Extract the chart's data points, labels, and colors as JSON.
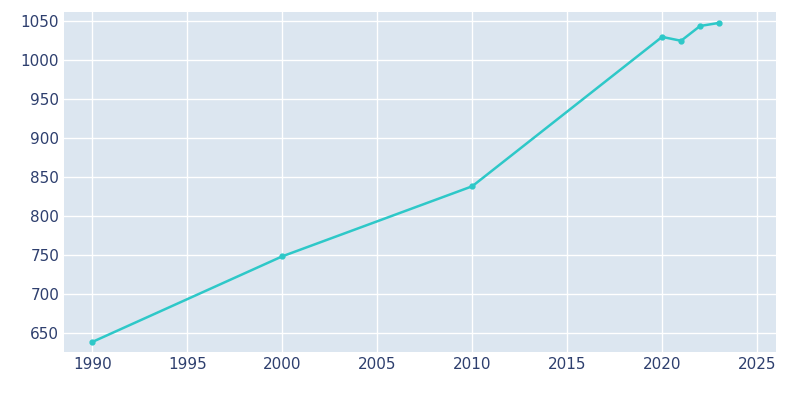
{
  "years": [
    1990,
    2000,
    2010,
    2020,
    2021,
    2022,
    2023
  ],
  "population": [
    638,
    748,
    838,
    1030,
    1025,
    1044,
    1048
  ],
  "line_color": "#2ec8c8",
  "background_color": "#ffffff",
  "axes_background_color": "#dce6f0",
  "grid_color": "#ffffff",
  "tick_label_color": "#2e3f6e",
  "ylim": [
    625,
    1062
  ],
  "xlim": [
    1988.5,
    2026
  ],
  "yticks": [
    650,
    700,
    750,
    800,
    850,
    900,
    950,
    1000,
    1050
  ],
  "xticks": [
    1990,
    1995,
    2000,
    2005,
    2010,
    2015,
    2020,
    2025
  ],
  "line_width": 1.8,
  "marker": "o",
  "marker_size": 3.5,
  "figsize": [
    8.0,
    4.0
  ],
  "dpi": 100
}
